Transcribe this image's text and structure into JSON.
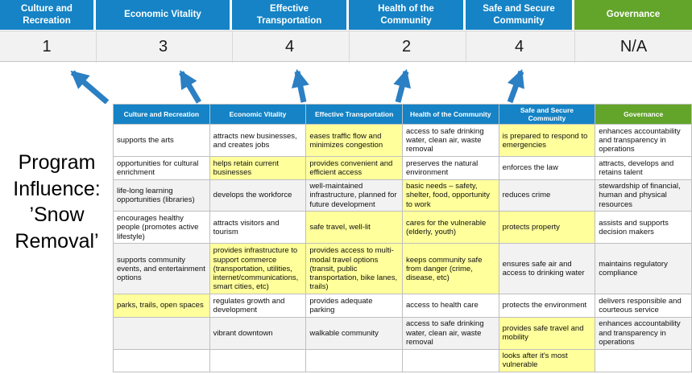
{
  "title": "Program Influence: ’Snow Removal’",
  "colors": {
    "blue": "#1583c5",
    "green": "#63a42a",
    "yellow": "#ffff9c",
    "band": "#f2f2f2",
    "arrow": "#2b7fc3"
  },
  "scoreboard": {
    "columns": [
      {
        "label": "Culture and Recreation",
        "score": "1",
        "color": "blue"
      },
      {
        "label": "Economic Vitality",
        "score": "3",
        "color": "blue"
      },
      {
        "label": "Effective Transportation",
        "score": "4",
        "color": "blue"
      },
      {
        "label": "Health of the Community",
        "score": "2",
        "color": "blue"
      },
      {
        "label": "Safe and Secure Community",
        "score": "4",
        "color": "blue"
      },
      {
        "label": "Governance",
        "score": "N/A",
        "color": "green"
      }
    ]
  },
  "matrix": {
    "headers": [
      {
        "label": "Culture and Recreation",
        "color": "blue"
      },
      {
        "label": "Economic Vitality",
        "color": "blue"
      },
      {
        "label": "Effective Transportation",
        "color": "blue"
      },
      {
        "label": "Health of the Community",
        "color": "blue"
      },
      {
        "label": "Safe and Secure Community",
        "color": "blue"
      },
      {
        "label": "Governance",
        "color": "green"
      }
    ],
    "rows": [
      [
        {
          "t": "supports the arts"
        },
        {
          "t": "attracts new businesses, and creates jobs"
        },
        {
          "t": "eases traffic flow and minimizes congestion",
          "h": true
        },
        {
          "t": "access to safe drinking water, clean air, waste removal"
        },
        {
          "t": "is prepared to respond to emergencies",
          "h": true
        },
        {
          "t": "enhances accountability and transparency in operations"
        }
      ],
      [
        {
          "t": "opportunities for cultural enrichment"
        },
        {
          "t": "helps retain current businesses",
          "h": true
        },
        {
          "t": "provides convenient and efficient access",
          "h": true
        },
        {
          "t": "preserves the natural environment"
        },
        {
          "t": "enforces the law"
        },
        {
          "t": "attracts, develops and retains talent"
        }
      ],
      [
        {
          "t": "life-long learning opportunities (libraries)"
        },
        {
          "t": "develops the workforce"
        },
        {
          "t": "well-maintained infrastructure, planned for future development"
        },
        {
          "t": "basic needs – safety, shelter, food, opportunity to work",
          "h": true
        },
        {
          "t": "reduces crime"
        },
        {
          "t": "stewardship of financial, human and physical resources"
        }
      ],
      [
        {
          "t": "encourages healthy people (promotes active lifestyle)"
        },
        {
          "t": "attracts visitors and tourism"
        },
        {
          "t": "safe travel, well-lit",
          "h": true
        },
        {
          "t": "cares for the vulnerable (elderly, youth)",
          "h": true
        },
        {
          "t": "protects property",
          "h": true
        },
        {
          "t": "assists and supports decision makers"
        }
      ],
      [
        {
          "t": "supports community events, and entertainment options"
        },
        {
          "t": "provides infrastructure to support commerce (transportation, utilities, internet/communications, smart cities, etc)",
          "h": true
        },
        {
          "t": "provides access to multi-modal travel options (transit, public transportation, bike lanes, trails)",
          "h": true
        },
        {
          "t": "keeps community safe from danger (crime, disease, etc)",
          "h": true
        },
        {
          "t": "ensures safe air and access to drinking water"
        },
        {
          "t": "maintains regulatory compliance"
        }
      ],
      [
        {
          "t": "parks, trails, open spaces",
          "h": true
        },
        {
          "t": "regulates growth and development"
        },
        {
          "t": "provides adequate parking"
        },
        {
          "t": "access to health care"
        },
        {
          "t": "protects the environment"
        },
        {
          "t": "delivers responsible and courteous service"
        }
      ],
      [
        {
          "t": ""
        },
        {
          "t": "vibrant downtown"
        },
        {
          "t": "walkable community"
        },
        {
          "t": "access to safe drinking water, clean air, waste removal"
        },
        {
          "t": "provides safe travel and mobility",
          "h": true
        },
        {
          "t": "enhances accountability and transparency in operations"
        }
      ],
      [
        {
          "t": ""
        },
        {
          "t": ""
        },
        {
          "t": ""
        },
        {
          "t": ""
        },
        {
          "t": "looks after it's most vulnerable",
          "h": true
        },
        {
          "t": ""
        }
      ]
    ]
  }
}
